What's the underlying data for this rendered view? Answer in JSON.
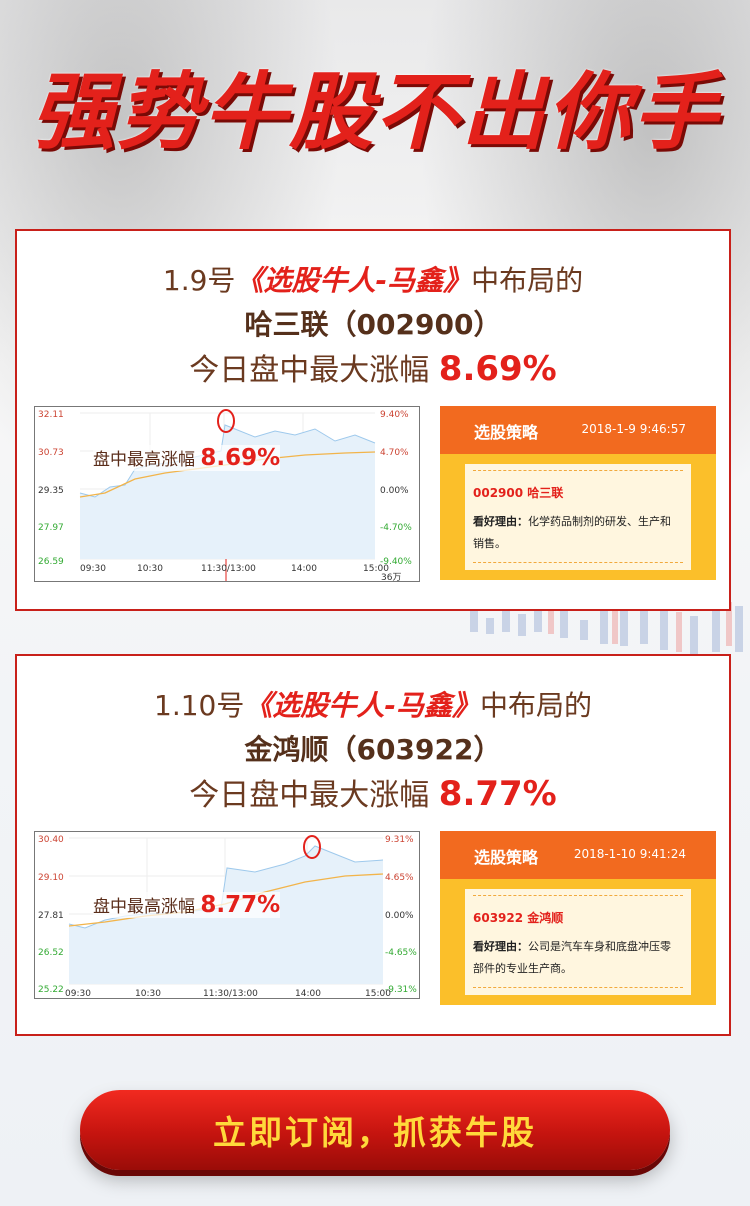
{
  "hero": {
    "title": "强势牛股不出你手"
  },
  "cards": [
    {
      "line1_prefix": "1.9号",
      "line1_highlight": "《选股牛人-马鑫》",
      "line1_suffix": "中布局的",
      "stock_line": "哈三联（002900）",
      "gain_prefix": "今日盘中最大涨幅",
      "gain_value": "8.69%",
      "chart": {
        "note_label": "盘中最高涨幅",
        "note_value": "8.69%",
        "left_ticks": [
          "32.11",
          "30.73",
          "29.35",
          "27.97",
          "26.59"
        ],
        "right_ticks": [
          "9.40%",
          "4.70%",
          "0.00%",
          "-4.70%",
          "-9.40%"
        ],
        "x_ticks": [
          "09:30",
          "10:30",
          "11:30/13:00",
          "14:00",
          "15:00"
        ],
        "extra_label": "36万"
      },
      "strategy": {
        "title": "选股策略",
        "datetime": "2018-1-9 9:46:57",
        "stock": "002900   哈三联",
        "reason_label": "看好理由：",
        "reason_text": "化学药品制剂的研发、生产和销售。"
      }
    },
    {
      "line1_prefix": "1.10号",
      "line1_highlight": "《选股牛人-马鑫》",
      "line1_suffix": "中布局的",
      "stock_line": "金鸿顺（603922）",
      "gain_prefix": "今日盘中最大涨幅",
      "gain_value": "8.77%",
      "chart": {
        "note_label": "盘中最高涨幅",
        "note_value": "8.77%",
        "left_ticks": [
          "30.40",
          "29.10",
          "27.81",
          "26.52",
          "25.22"
        ],
        "right_ticks": [
          "9.31%",
          "4.65%",
          "0.00%",
          "-4.65%",
          "-9.31%"
        ],
        "x_ticks": [
          "09:30",
          "10:30",
          "11:30/13:00",
          "14:00",
          "15:00"
        ]
      },
      "strategy": {
        "title": "选股策略",
        "datetime": "2018-1-10 9:41:24",
        "stock": "603922   金鸿顺",
        "reason_label": "看好理由：",
        "reason_text": "公司是汽车车身和底盘冲压零部件的专业生产商。"
      }
    }
  ],
  "cta": {
    "label": "立即订阅，抓获牛股"
  },
  "colors": {
    "accent_red": "#e3211b",
    "orange": "#f26a1f",
    "gold": "#fbbf2a",
    "cta_text": "#ffd93b"
  }
}
